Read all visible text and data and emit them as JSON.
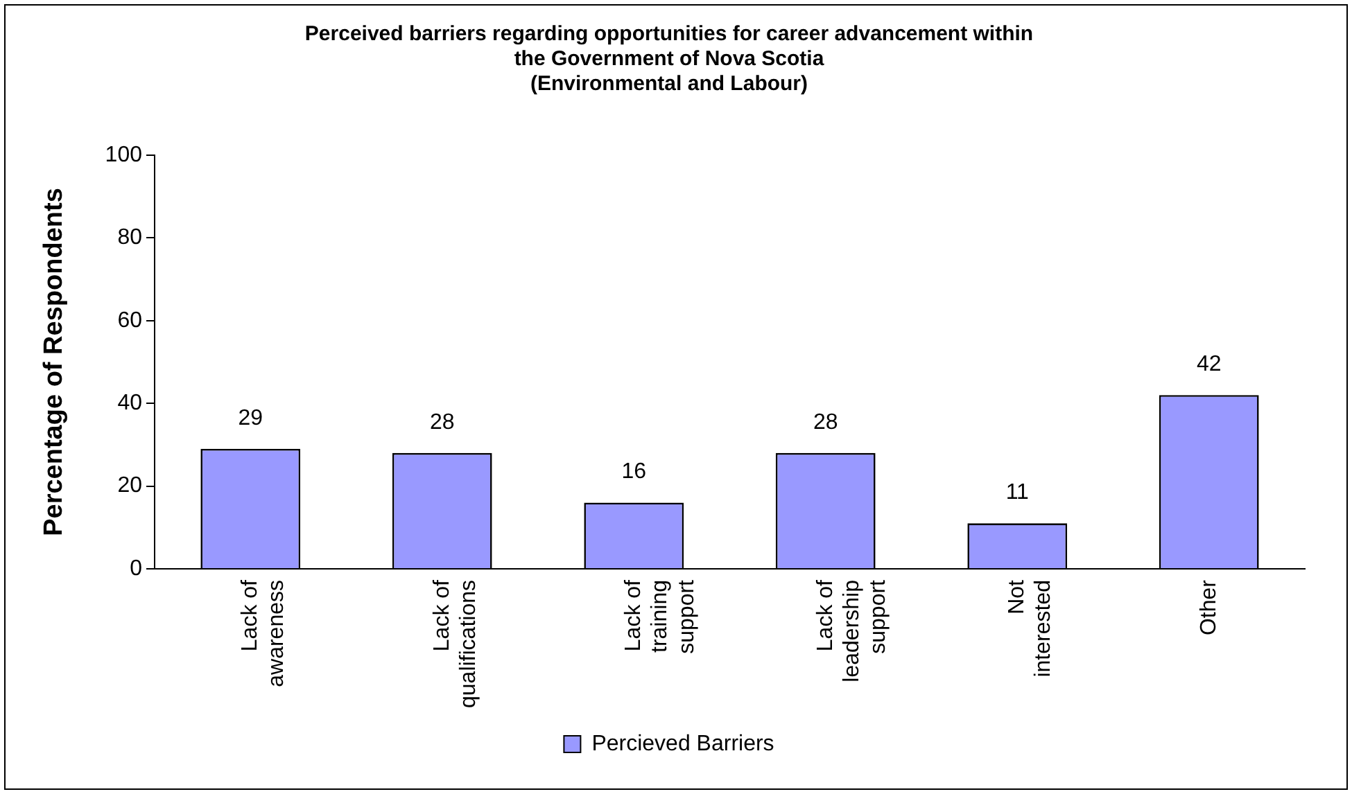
{
  "chart_data": {
    "type": "bar",
    "title": "Perceived barriers regarding opportunities for career advancement within\nthe Government of Nova Scotia\n(Environmental and Labour)",
    "ylabel": "Percentage of Respondents",
    "categories": [
      "Lack of awareness",
      "Lack of qualifications",
      "Lack of training support",
      "Lack of leadership support",
      "Not interested",
      "Other"
    ],
    "series": [
      {
        "name": "Percieved Barriers",
        "color": "#9999ff",
        "values": [
          29,
          28,
          16,
          28,
          11,
          42
        ]
      }
    ],
    "ylim": [
      0,
      100
    ],
    "yticks": [
      0,
      20,
      40,
      60,
      80,
      100
    ],
    "grid": false,
    "legend": "bottom",
    "data_labels": true
  }
}
